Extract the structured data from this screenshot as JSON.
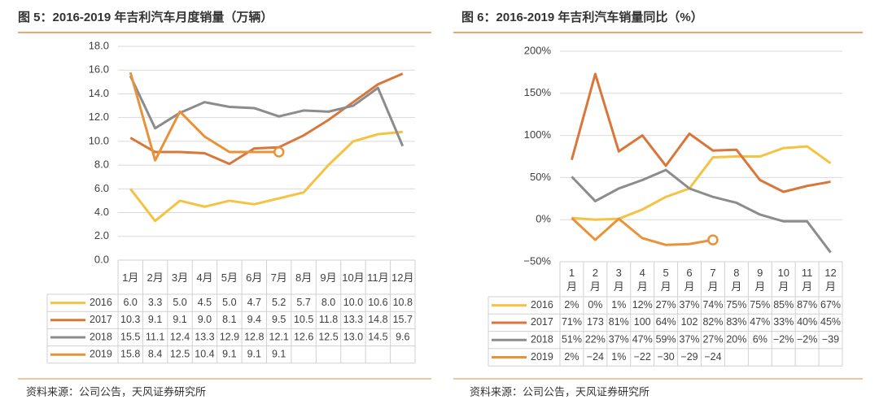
{
  "chart_data": [
    {
      "type": "line",
      "title": "图 5：2016-2019 年吉利汽车月度销量（万辆）",
      "source": "资料来源：公司公告，天风证券研究所",
      "categories": [
        "1月",
        "2月",
        "3月",
        "4月",
        "5月",
        "6月",
        "7月",
        "8月",
        "9月",
        "10月",
        "11月",
        "12月"
      ],
      "ylim": [
        0,
        18
      ],
      "yticks": [
        {
          "value": 0,
          "label": "0.0"
        },
        {
          "value": 2,
          "label": "2.0"
        },
        {
          "value": 4,
          "label": "4.0"
        },
        {
          "value": 6,
          "label": "6.0"
        },
        {
          "value": 8,
          "label": "8.0"
        },
        {
          "value": 10,
          "label": "10.0"
        },
        {
          "value": 12,
          "label": "12.0"
        },
        {
          "value": 14,
          "label": "14.0"
        },
        {
          "value": 16,
          "label": "16.0"
        },
        {
          "value": 18,
          "label": "18.0"
        }
      ],
      "grid": true,
      "series": [
        {
          "name": "2016",
          "color": "#f5c242",
          "values": [
            6,
            3.3,
            5,
            4.5,
            5,
            4.7,
            5.2,
            5.7,
            8,
            10,
            10.6,
            10.8
          ],
          "value_labels": [
            "6.0",
            "3.3",
            "5.0",
            "4.5",
            "5.0",
            "4.7",
            "5.2",
            "5.7",
            "8.0",
            "10.0",
            "10.6",
            "10.8"
          ]
        },
        {
          "name": "2017",
          "color": "#d9773a",
          "values": [
            10.3,
            9.1,
            9.1,
            9,
            8.1,
            9.4,
            9.5,
            10.5,
            11.8,
            13.3,
            14.8,
            15.7
          ],
          "value_labels": [
            "10.3",
            "9.1",
            "9.1",
            "9.0",
            "8.1",
            "9.4",
            "9.5",
            "10.5",
            "11.8",
            "13.3",
            "14.8",
            "15.7"
          ]
        },
        {
          "name": "2018",
          "color": "#8c8c8c",
          "values": [
            15.5,
            11.1,
            12.4,
            13.3,
            12.9,
            12.8,
            12.1,
            12.6,
            12.5,
            13,
            14.5,
            9.6
          ],
          "value_labels": [
            "15.5",
            "11.1",
            "12.4",
            "13.3",
            "12.9",
            "12.8",
            "12.1",
            "12.6",
            "12.5",
            "13.0",
            "14.5",
            "9.6"
          ]
        },
        {
          "name": "2019",
          "color": "#e8923a",
          "end_marker": true,
          "values": [
            15.8,
            8.4,
            12.5,
            10.4,
            9.1,
            9.1,
            9.1,
            null,
            null,
            null,
            null,
            null
          ],
          "value_labels": [
            "15.8",
            "8.4",
            "12.5",
            "10.4",
            "9.1",
            "9.1",
            "9.1",
            null,
            null,
            null,
            null,
            null
          ]
        }
      ]
    },
    {
      "type": "line",
      "title": "图 6：2016-2019 年吉利汽车销量同比（%）",
      "source": "资料来源：公司公告，天风证券研究所",
      "categories": [
        "1月",
        "2月",
        "3月",
        "4月",
        "5月",
        "6月",
        "7月",
        "8月",
        "9月",
        "10月",
        "11月",
        "12月"
      ],
      "ylim": [
        -50,
        200
      ],
      "yticks": [
        {
          "value": -50,
          "label": "−50%"
        },
        {
          "value": 0,
          "label": "0%"
        },
        {
          "value": 50,
          "label": "50%"
        },
        {
          "value": 100,
          "label": "100%"
        },
        {
          "value": 150,
          "label": "150%"
        },
        {
          "value": 200,
          "label": "200%"
        }
      ],
      "grid": true,
      "series": [
        {
          "name": "2016",
          "color": "#f5c242",
          "values": [
            2,
            0,
            1,
            12,
            27,
            37,
            74,
            75,
            75,
            85,
            87,
            67
          ],
          "value_labels": [
            "2%",
            "0%",
            "1%",
            "12%",
            "27%",
            "37%",
            "74%",
            "75%",
            "75%",
            "85%",
            "87%",
            "67%"
          ]
        },
        {
          "name": "2017",
          "color": "#d9773a",
          "values": [
            71,
            173,
            81,
            100,
            64,
            102,
            82,
            83,
            47,
            33,
            40,
            45
          ],
          "value_labels": [
            "71%",
            "173",
            "81%",
            "100",
            "64%",
            "102",
            "82%",
            "83%",
            "47%",
            "33%",
            "40%",
            "45%"
          ]
        },
        {
          "name": "2018",
          "color": "#8c8c8c",
          "values": [
            51,
            22,
            37,
            47,
            59,
            37,
            27,
            20,
            6,
            -2,
            -2,
            -39
          ],
          "value_labels": [
            "51%",
            "22%",
            "37%",
            "47%",
            "59%",
            "37%",
            "27%",
            "20%",
            "6%",
            "−2%",
            "−2%",
            "−39"
          ]
        },
        {
          "name": "2019",
          "color": "#e8923a",
          "end_marker": true,
          "values": [
            2,
            -24,
            1,
            -22,
            -30,
            -29,
            -24,
            null,
            null,
            null,
            null,
            null
          ],
          "value_labels": [
            "2%",
            "−24",
            "1%",
            "−22",
            "−30",
            "−29",
            "−24",
            null,
            null,
            null,
            null,
            null
          ]
        }
      ]
    }
  ]
}
